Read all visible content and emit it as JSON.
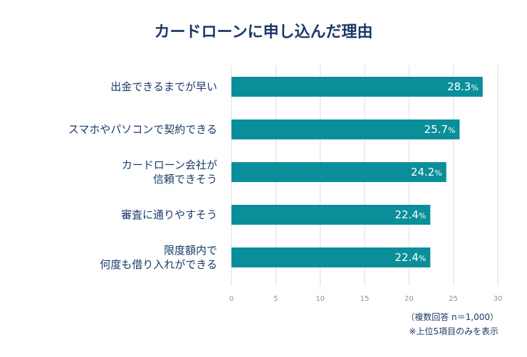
{
  "colors": {
    "bar": "#0a8f9a",
    "grid": "#d9dde8",
    "text": "#1a3a68"
  },
  "chart_data": {
    "type": "bar",
    "orientation": "horizontal",
    "title": "カードローンに申し込んだ理由",
    "categories": [
      [
        "出金できるまでが早い"
      ],
      [
        "スマホやパソコンで契約できる"
      ],
      [
        "カードローン会社が",
        "信頼できそう"
      ],
      [
        "審査に通りやすそう"
      ],
      [
        "限度額内で",
        "何度も借り入れができる"
      ]
    ],
    "values": [
      28.3,
      25.7,
      24.2,
      22.4,
      22.4
    ],
    "value_unit": "%",
    "xlim": [
      0,
      30
    ],
    "xticks": [
      0,
      5,
      10,
      15,
      20,
      25,
      30
    ],
    "grid": true,
    "notes": [
      "（複数回答 n＝1,000）",
      "※上位5項目のみを表示"
    ]
  }
}
